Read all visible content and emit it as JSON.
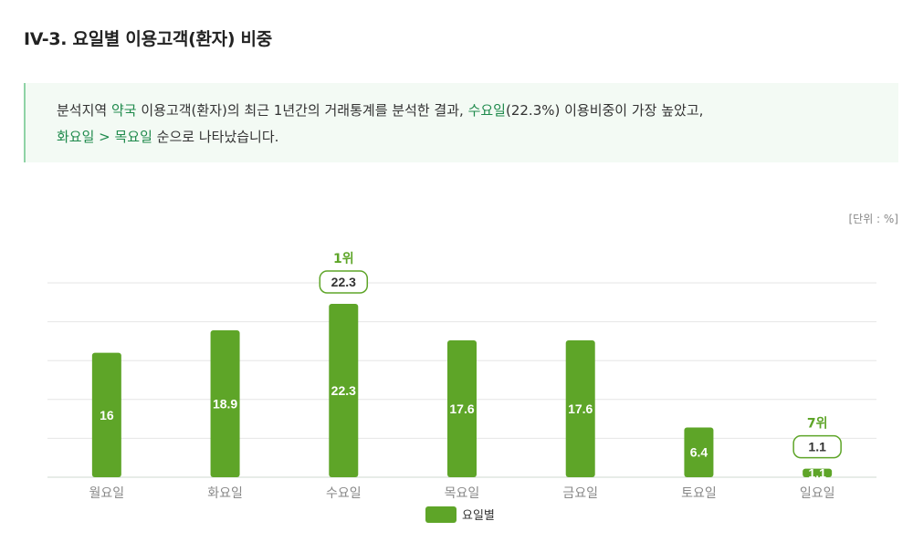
{
  "title": "IV-3. 요일별 이용고객(환자) 비중",
  "summary": {
    "p1": "분석지역 ",
    "h1": "약국",
    "p2": " 이용고객(환자)의 최근 1년간의 거래통계를 분석한 결과, ",
    "h2": "수요일",
    "p3": "(22.3%) 이용비중이 가장 높았고,",
    "h3": "화요일 > 목요일",
    "p4": " 순으로 나타났습니다."
  },
  "unit_label": "[단위 : %]",
  "colors": {
    "bar": "#5ea528",
    "accent": "#5ea528",
    "highlight_text": "#1f8a4c"
  },
  "chart_data": {
    "type": "bar",
    "categories": [
      "월요일",
      "화요일",
      "수요일",
      "목요일",
      "금요일",
      "토요일",
      "일요일"
    ],
    "series": [
      {
        "name": "요일별",
        "values": [
          16,
          18.9,
          22.3,
          17.6,
          17.6,
          6.4,
          1.1
        ]
      }
    ],
    "ylim": [
      0,
      25
    ],
    "grid": true,
    "annotations": [
      {
        "category": "수요일",
        "rank": "1위",
        "value": "22.3"
      },
      {
        "category": "일요일",
        "rank": "7위",
        "value": "1.1"
      }
    ]
  }
}
